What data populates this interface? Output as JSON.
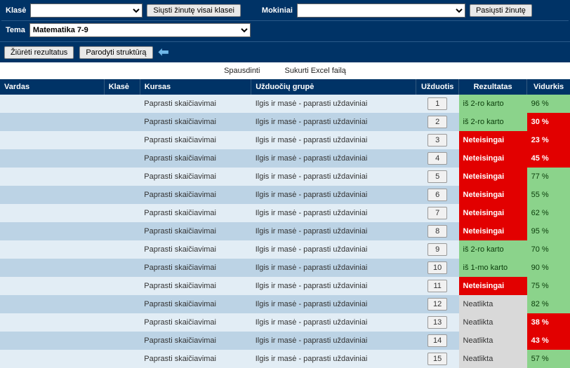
{
  "topbar": {
    "klase_label": "Klasė",
    "klase_value": "",
    "send_class_btn": "Siųsti žinutę visai klasei",
    "mokiniai_label": "Mokiniai",
    "mokiniai_value": "",
    "send_msg_btn": "Pasiųsti žinutę",
    "tema_label": "Tema",
    "tema_value": "Matematika 7-9",
    "view_results_btn": "Žiūrėti rezultatus",
    "show_structure_btn": "Parodyti struktūrą"
  },
  "tools": {
    "print": "Spausdinti",
    "excel": "Sukurti Excel failą"
  },
  "headers": {
    "vardas": "Vardas",
    "klase": "Klasė",
    "kursas": "Kursas",
    "grupe": "Užduočių grupė",
    "uzd": "Užduotis",
    "rez": "Rezultatas",
    "vid": "Vidurkis"
  },
  "colors": {
    "header_bg": "#003366",
    "row_a": "#e2edf5",
    "row_b": "#bcd3e5",
    "green": "#8bd38b",
    "red": "#e20000",
    "gray": "#d9d9d9"
  },
  "rows": [
    {
      "n": "1",
      "kursas": "Paprasti skaičiavimai",
      "grupe": "Ilgis ir masė - paprasti uždaviniai",
      "rez": "iš 2-ro karto",
      "rez_cls": "green",
      "avg": "96 %",
      "avg_cls": "green"
    },
    {
      "n": "2",
      "kursas": "Paprasti skaičiavimai",
      "grupe": "Ilgis ir masė - paprasti uždaviniai",
      "rez": "iš 2-ro karto",
      "rez_cls": "green",
      "avg": "30 %",
      "avg_cls": "red"
    },
    {
      "n": "3",
      "kursas": "Paprasti skaičiavimai",
      "grupe": "Ilgis ir masė - paprasti uždaviniai",
      "rez": "Neteisingai",
      "rez_cls": "red",
      "avg": "23 %",
      "avg_cls": "red"
    },
    {
      "n": "4",
      "kursas": "Paprasti skaičiavimai",
      "grupe": "Ilgis ir masė - paprasti uždaviniai",
      "rez": "Neteisingai",
      "rez_cls": "red",
      "avg": "45 %",
      "avg_cls": "red"
    },
    {
      "n": "5",
      "kursas": "Paprasti skaičiavimai",
      "grupe": "Ilgis ir masė - paprasti uždaviniai",
      "rez": "Neteisingai",
      "rez_cls": "red",
      "avg": "77 %",
      "avg_cls": "green"
    },
    {
      "n": "6",
      "kursas": "Paprasti skaičiavimai",
      "grupe": "Ilgis ir masė - paprasti uždaviniai",
      "rez": "Neteisingai",
      "rez_cls": "red",
      "avg": "55 %",
      "avg_cls": "green"
    },
    {
      "n": "7",
      "kursas": "Paprasti skaičiavimai",
      "grupe": "Ilgis ir masė - paprasti uždaviniai",
      "rez": "Neteisingai",
      "rez_cls": "red",
      "avg": "62 %",
      "avg_cls": "green"
    },
    {
      "n": "8",
      "kursas": "Paprasti skaičiavimai",
      "grupe": "Ilgis ir masė - paprasti uždaviniai",
      "rez": "Neteisingai",
      "rez_cls": "red",
      "avg": "95 %",
      "avg_cls": "green"
    },
    {
      "n": "9",
      "kursas": "Paprasti skaičiavimai",
      "grupe": "Ilgis ir masė - paprasti uždaviniai",
      "rez": "iš 2-ro karto",
      "rez_cls": "green",
      "avg": "70 %",
      "avg_cls": "green"
    },
    {
      "n": "10",
      "kursas": "Paprasti skaičiavimai",
      "grupe": "Ilgis ir masė - paprasti uždaviniai",
      "rez": "iš 1-mo karto",
      "rez_cls": "green",
      "avg": "90 %",
      "avg_cls": "green"
    },
    {
      "n": "11",
      "kursas": "Paprasti skaičiavimai",
      "grupe": "Ilgis ir masė - paprasti uždaviniai",
      "rez": "Neteisingai",
      "rez_cls": "red",
      "avg": "75 %",
      "avg_cls": "green"
    },
    {
      "n": "12",
      "kursas": "Paprasti skaičiavimai",
      "grupe": "Ilgis ir masė - paprasti uždaviniai",
      "rez": "Neatlikta",
      "rez_cls": "gray",
      "avg": "82 %",
      "avg_cls": "green"
    },
    {
      "n": "13",
      "kursas": "Paprasti skaičiavimai",
      "grupe": "Ilgis ir masė - paprasti uždaviniai",
      "rez": "Neatlikta",
      "rez_cls": "gray",
      "avg": "38 %",
      "avg_cls": "red"
    },
    {
      "n": "14",
      "kursas": "Paprasti skaičiavimai",
      "grupe": "Ilgis ir masė - paprasti uždaviniai",
      "rez": "Neatlikta",
      "rez_cls": "gray",
      "avg": "43 %",
      "avg_cls": "red"
    },
    {
      "n": "15",
      "kursas": "Paprasti skaičiavimai",
      "grupe": "Ilgis ir masė - paprasti uždaviniai",
      "rez": "Neatlikta",
      "rez_cls": "gray",
      "avg": "57 %",
      "avg_cls": "green"
    }
  ]
}
